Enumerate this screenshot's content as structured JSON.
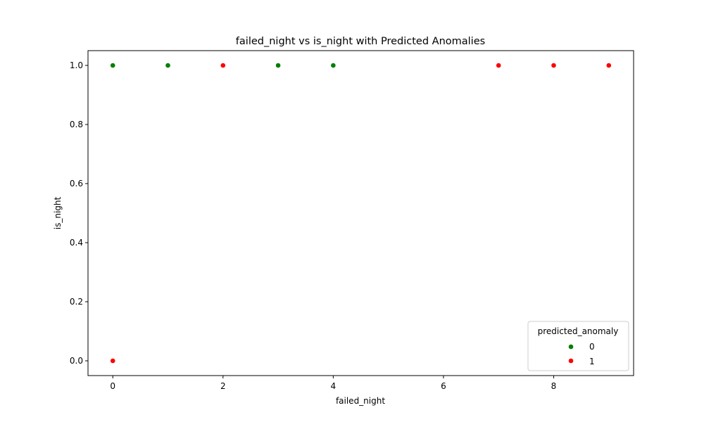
{
  "chart_data": {
    "type": "scatter",
    "title": "failed_night vs is_night with Predicted Anomalies",
    "xlabel": "failed_night",
    "ylabel": "is_night",
    "xlim": [
      -0.45,
      9.45
    ],
    "ylim": [
      -0.05,
      1.05
    ],
    "xticks": [
      0,
      2,
      4,
      6,
      8
    ],
    "xtick_labels": [
      "0",
      "2",
      "4",
      "6",
      "8"
    ],
    "yticks": [
      0.0,
      0.2,
      0.4,
      0.6,
      0.8,
      1.0
    ],
    "ytick_labels": [
      "0.0",
      "0.2",
      "0.4",
      "0.6",
      "0.8",
      "1.0"
    ],
    "grid": false,
    "legend": {
      "title": "predicted_anomaly",
      "placement": "bottom-right"
    },
    "series": [
      {
        "name": "0",
        "color": "#008000",
        "points": [
          {
            "x": 0,
            "y": 1.0
          },
          {
            "x": 1,
            "y": 1.0
          },
          {
            "x": 3,
            "y": 1.0
          },
          {
            "x": 4,
            "y": 1.0
          }
        ]
      },
      {
        "name": "1",
        "color": "#ff0000",
        "points": [
          {
            "x": 0,
            "y": 0.0
          },
          {
            "x": 2,
            "y": 1.0
          },
          {
            "x": 7,
            "y": 1.0
          },
          {
            "x": 8,
            "y": 1.0
          },
          {
            "x": 9,
            "y": 1.0
          }
        ]
      }
    ]
  }
}
